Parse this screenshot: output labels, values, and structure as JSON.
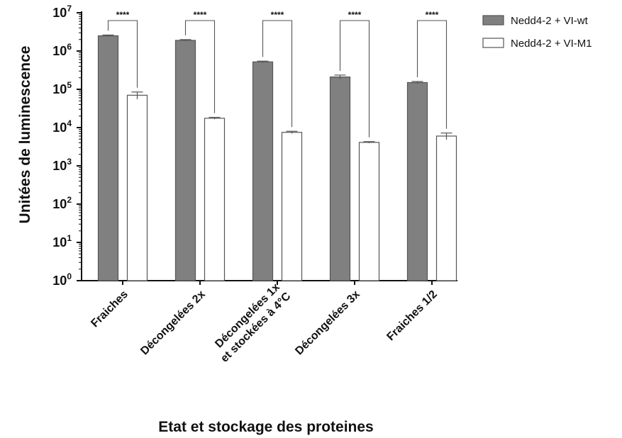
{
  "chart_data": {
    "type": "bar",
    "title": "",
    "xlabel": "Etat et stockage des proteines",
    "ylabel": "Unitées de luminescence",
    "yscale": "log",
    "ylim": [
      1,
      10000000
    ],
    "yticks": [
      {
        "base": "10",
        "exp": "0",
        "value": 1
      },
      {
        "base": "10",
        "exp": "1",
        "value": 10
      },
      {
        "base": "10",
        "exp": "2",
        "value": 100
      },
      {
        "base": "10",
        "exp": "3",
        "value": 1000
      },
      {
        "base": "10",
        "exp": "4",
        "value": 10000
      },
      {
        "base": "10",
        "exp": "5",
        "value": 100000
      },
      {
        "base": "10",
        "exp": "6",
        "value": 1000000
      },
      {
        "base": "10",
        "exp": "7",
        "value": 10000000
      }
    ],
    "categories": [
      [
        "Fraiches"
      ],
      [
        "Décongelées 2x"
      ],
      [
        "Décongelées 1x",
        "et stockées à 4°C"
      ],
      [
        "Décongelées 3x"
      ],
      [
        "Fraiches 1/2"
      ]
    ],
    "series": [
      {
        "name": "Nedd4-2 + VI-wt",
        "color": "#808080",
        "values": [
          2500000,
          1900000,
          520000,
          210000,
          150000
        ],
        "errors": [
          120000,
          90000,
          25000,
          25000,
          10000
        ]
      },
      {
        "name": "Nedd4-2 + VI-M1",
        "color": "#ffffff",
        "values": [
          70000,
          17500,
          7500,
          4100,
          6000
        ],
        "errors": [
          15000,
          1000,
          500,
          200,
          1200
        ]
      }
    ],
    "significance": [
      "****",
      "****",
      "****",
      "****",
      "****"
    ],
    "legend_position": "top-right",
    "grid": false
  }
}
